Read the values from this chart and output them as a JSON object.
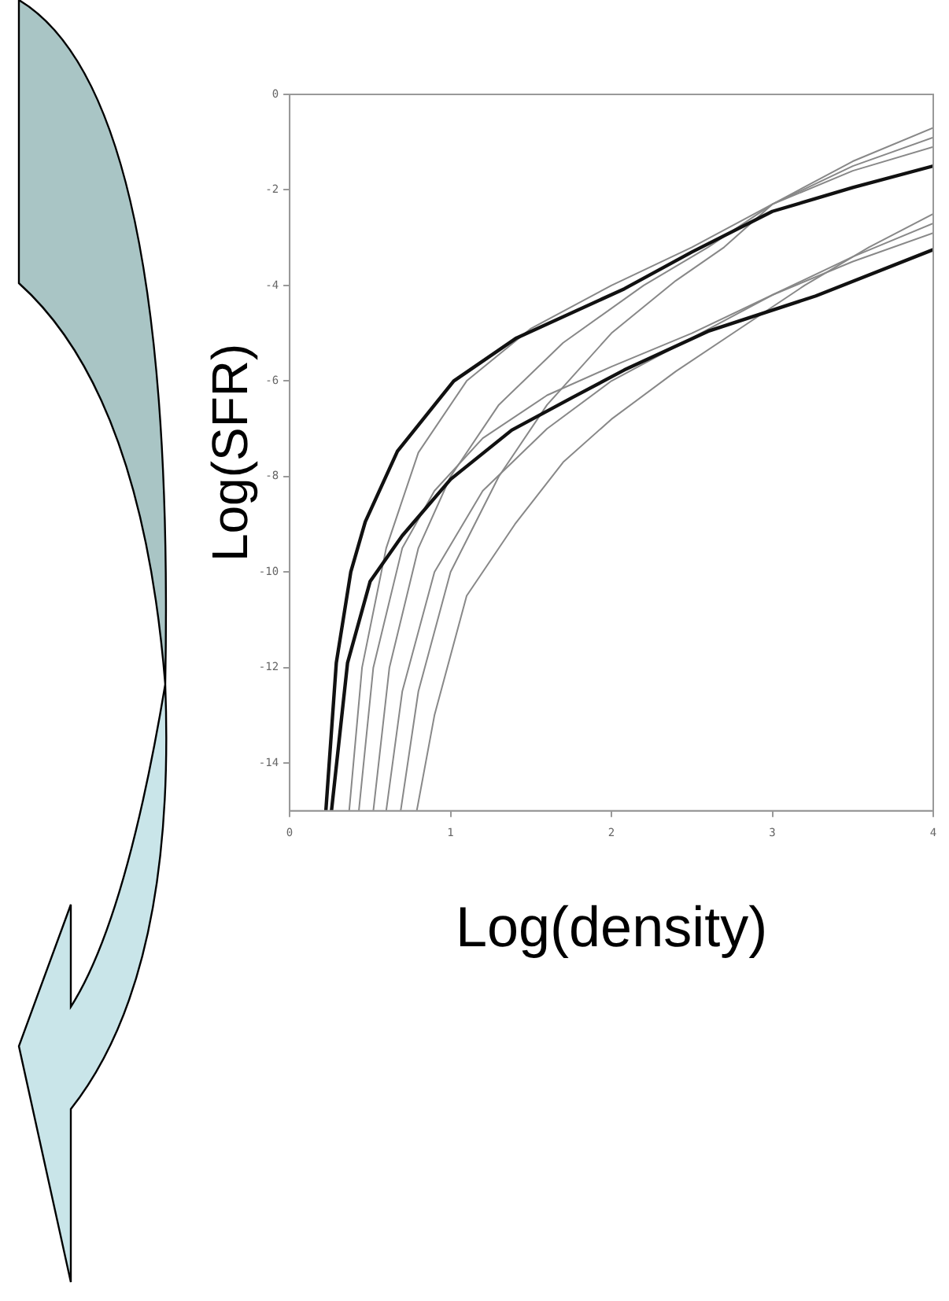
{
  "chart_data": {
    "type": "line",
    "xlabel": "Log(density)",
    "ylabel": "Log(SFR)",
    "xlim": [
      0,
      4
    ],
    "ylim": [
      -15,
      0
    ],
    "xticks": [
      0,
      1,
      2,
      3,
      4
    ],
    "yticks": [
      0,
      -2,
      -4,
      -6,
      -8,
      -10,
      -12,
      -14
    ],
    "marker": "none",
    "line_style": "solid",
    "series": [
      {
        "color": "#111111",
        "x": [
          0.225,
          0.29,
          0.38,
          0.47,
          0.67,
          1.02,
          1.41,
          2.08,
          2.5,
          3,
          3.5,
          4
        ],
        "values": [
          -15,
          -11.9,
          -10,
          -8.95,
          -7.47,
          -6,
          -5.1,
          -4.07,
          -3.3,
          -2.45,
          -1.95,
          -1.5
        ]
      },
      {
        "color": "#111111",
        "x": [
          0.26,
          0.36,
          0.5,
          0.7,
          1.0,
          1.38,
          1.75,
          2.08,
          2.6,
          3.27,
          4
        ],
        "values": [
          -15,
          -11.9,
          -10.2,
          -9.24,
          -8.06,
          -7.03,
          -6.36,
          -5.77,
          -4.96,
          -4.22,
          -3.25
        ]
      },
      {
        "color": "#888888",
        "x": [
          0.37,
          0.45,
          0.6,
          0.8,
          1.1,
          1.5,
          2.0,
          2.5,
          3,
          3.5,
          4
        ],
        "values": [
          -15,
          -12,
          -9.5,
          -7.5,
          -6,
          -4.9,
          -4.0,
          -3.2,
          -2.3,
          -1.6,
          -1.1
        ]
      },
      {
        "color": "#888888",
        "x": [
          0.52,
          0.62,
          0.8,
          1.0,
          1.3,
          1.7,
          2.2,
          2.6,
          3,
          3.5,
          4
        ],
        "values": [
          -15,
          -12,
          -9.5,
          -8,
          -6.5,
          -5.2,
          -4.0,
          -3.2,
          -2.3,
          -1.5,
          -0.9
        ]
      },
      {
        "color": "#888888",
        "x": [
          0.69,
          0.8,
          1.0,
          1.3,
          1.6,
          2.0,
          2.4,
          2.7,
          3,
          3.5,
          4
        ],
        "values": [
          -15,
          -12.5,
          -10,
          -8,
          -6.5,
          -5.0,
          -3.9,
          -3.2,
          -2.3,
          -1.4,
          -0.7
        ]
      },
      {
        "color": "#888888",
        "x": [
          0.43,
          0.52,
          0.7,
          0.9,
          1.2,
          1.6,
          2.0,
          2.5,
          3,
          3.5,
          4
        ],
        "values": [
          -15,
          -12,
          -9.5,
          -8.3,
          -7.2,
          -6.3,
          -5.7,
          -5.0,
          -4.2,
          -3.5,
          -2.9
        ]
      },
      {
        "color": "#888888",
        "x": [
          0.6,
          0.7,
          0.9,
          1.2,
          1.6,
          2.0,
          2.5,
          3,
          3.5,
          4
        ],
        "values": [
          -15,
          -12.5,
          -10,
          -8.3,
          -7,
          -6,
          -5.1,
          -4.2,
          -3.4,
          -2.7
        ]
      },
      {
        "color": "#888888",
        "x": [
          0.79,
          0.9,
          1.1,
          1.4,
          1.7,
          2.0,
          2.4,
          2.8,
          3.2,
          3.6,
          4
        ],
        "values": [
          -15,
          -13,
          -10.5,
          -9,
          -7.7,
          -6.8,
          -5.8,
          -4.9,
          -4.0,
          -3.2,
          -2.5
        ]
      }
    ]
  }
}
